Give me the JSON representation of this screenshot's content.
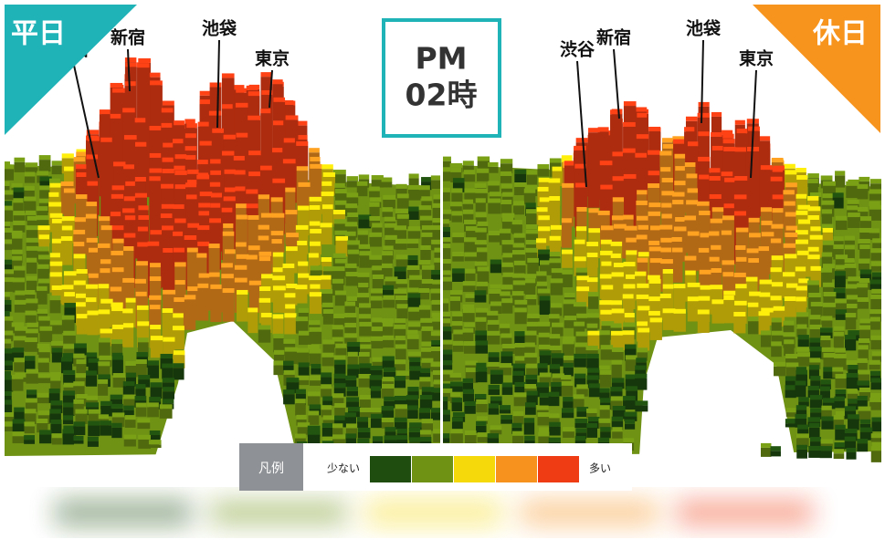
{
  "panels": [
    {
      "corner_label": "平日",
      "stations": [
        "渋谷",
        "新宿",
        "池袋",
        "東京"
      ]
    },
    {
      "corner_label": "休日",
      "stations": [
        "渋谷",
        "新宿",
        "池袋",
        "東京"
      ]
    }
  ],
  "time": {
    "period": "PM",
    "hour": "02時"
  },
  "legend": {
    "title": "凡例",
    "low": "少ない",
    "high": "多い",
    "colors": [
      "#1e4d0f",
      "#6f9214",
      "#f5d90a",
      "#f7921e",
      "#f03c14"
    ]
  }
}
